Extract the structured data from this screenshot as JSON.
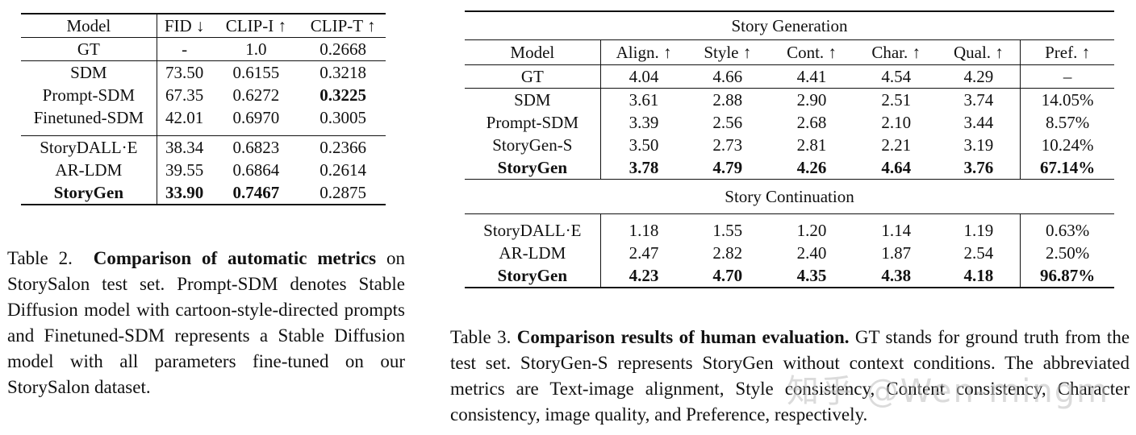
{
  "table2": {
    "headers": [
      "Model",
      "FID ↓",
      "CLIP-I ↑",
      "CLIP-T ↑"
    ],
    "gt": [
      "GT",
      "-",
      "1.0",
      "0.2668"
    ],
    "group1": [
      [
        "SDM",
        "73.50",
        "0.6155",
        "0.3218"
      ],
      [
        "Prompt-SDM",
        "67.35",
        "0.6272",
        "0.3225"
      ],
      [
        "Finetuned-SDM",
        "42.01",
        "0.6970",
        "0.3005"
      ]
    ],
    "group2": [
      [
        "StoryDALL·E",
        "38.34",
        "0.6823",
        "0.2366"
      ],
      [
        "AR-LDM",
        "39.55",
        "0.6864",
        "0.2614"
      ],
      [
        "StoryGen",
        "33.90",
        "0.7467",
        "0.2875"
      ]
    ],
    "caption_label": "Table 2.",
    "caption_bold": "Comparison of automatic metrics",
    "caption_rest": "on StorySalon test set. Prompt-SDM denotes Stable Diffusion model with cartoon-style-directed prompts and Finetuned-SDM represents a Stable Diffusion model with all parameters fine-tuned on our StorySalon dataset."
  },
  "table3": {
    "section1": "Story Generation",
    "section2": "Story Continuation",
    "headers": [
      "Model",
      "Align. ↑",
      "Style ↑",
      "Cont. ↑",
      "Char. ↑",
      "Qual. ↑",
      "Pref. ↑"
    ],
    "gt": [
      "GT",
      "4.04",
      "4.66",
      "4.41",
      "4.54",
      "4.29",
      "–"
    ],
    "generation": [
      [
        "SDM",
        "3.61",
        "2.88",
        "2.90",
        "2.51",
        "3.74",
        "14.05%"
      ],
      [
        "Prompt-SDM",
        "3.39",
        "2.56",
        "2.68",
        "2.10",
        "3.44",
        "8.57%"
      ],
      [
        "StoryGen-S",
        "3.50",
        "2.73",
        "2.81",
        "2.21",
        "3.19",
        "10.24%"
      ],
      [
        "StoryGen",
        "3.78",
        "4.79",
        "4.26",
        "4.64",
        "3.76",
        "67.14%"
      ]
    ],
    "continuation": [
      [
        "StoryDALL·E",
        "1.18",
        "1.55",
        "1.20",
        "1.14",
        "1.19",
        "0.63%"
      ],
      [
        "AR-LDM",
        "2.47",
        "2.82",
        "2.40",
        "1.87",
        "2.54",
        "2.50%"
      ],
      [
        "StoryGen",
        "4.23",
        "4.70",
        "4.35",
        "4.38",
        "4.18",
        "96.87%"
      ]
    ],
    "caption_label": "Table 3.",
    "caption_bold": "Comparison results of human evaluation.",
    "caption_rest": "GT stands for ground truth from the test set. StoryGen-S represents StoryGen without context conditions. The abbreviated metrics are Text-image alignment, Style consistency, Content consistency, Character consistency, image quality, and Preference, respectively."
  },
  "watermark": "知乎 @Wen-mingm"
}
